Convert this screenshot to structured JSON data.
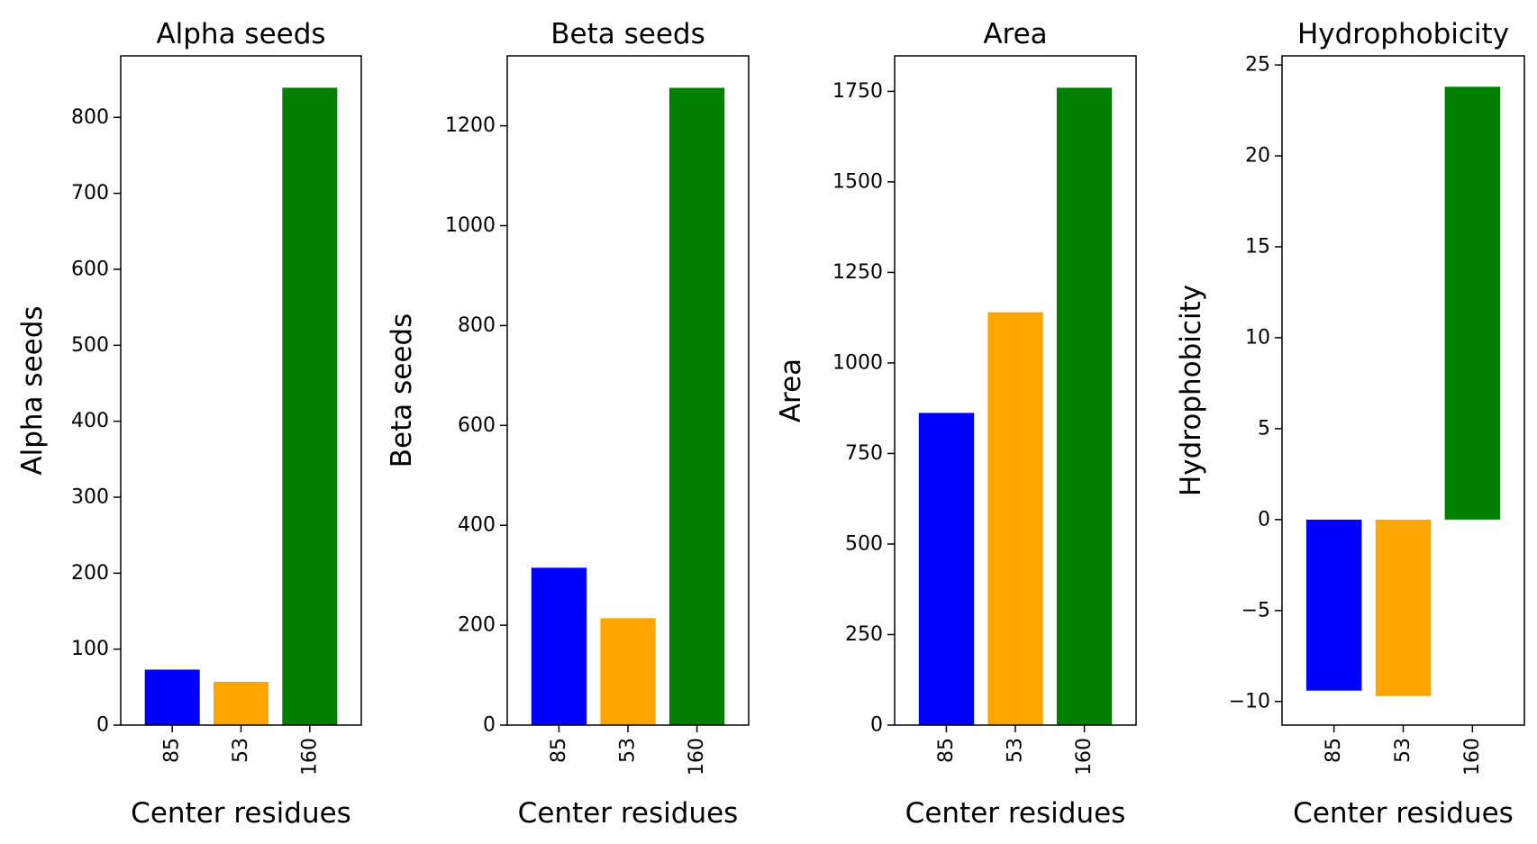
{
  "chart_data": [
    {
      "type": "bar",
      "title": "Alpha seeds",
      "xlabel": "Center residues",
      "ylabel": "Alpha seeds",
      "categories": [
        "85",
        "53",
        "160"
      ],
      "values": [
        73,
        57,
        839
      ],
      "colors": [
        "#0000ff",
        "#ffa500",
        "#008000"
      ],
      "ylim": [
        0,
        881
      ],
      "yticks": [
        0,
        100,
        200,
        300,
        400,
        500,
        600,
        700,
        800
      ],
      "ytick_labels": [
        "0",
        "100",
        "200",
        "300",
        "400",
        "500",
        "600",
        "700",
        "800"
      ],
      "grid": false
    },
    {
      "type": "bar",
      "title": "Beta seeds",
      "xlabel": "Center residues",
      "ylabel": "Beta seeds",
      "categories": [
        "85",
        "53",
        "160"
      ],
      "values": [
        315,
        214,
        1276
      ],
      "colors": [
        "#0000ff",
        "#ffa500",
        "#008000"
      ],
      "ylim": [
        0,
        1340
      ],
      "yticks": [
        0,
        200,
        400,
        600,
        800,
        1000,
        1200
      ],
      "ytick_labels": [
        "0",
        "200",
        "400",
        "600",
        "800",
        "1000",
        "1200"
      ],
      "grid": false
    },
    {
      "type": "bar",
      "title": "Area",
      "xlabel": "Center residues",
      "ylabel": "Area",
      "categories": [
        "85",
        "53",
        "160"
      ],
      "values": [
        862,
        1140,
        1760
      ],
      "colors": [
        "#0000ff",
        "#ffa500",
        "#008000"
      ],
      "ylim": [
        0,
        1848
      ],
      "yticks": [
        0,
        250,
        500,
        750,
        1000,
        1250,
        1500,
        1750
      ],
      "ytick_labels": [
        "0",
        "250",
        "500",
        "750",
        "1000",
        "1250",
        "1500",
        "1750"
      ],
      "grid": false
    },
    {
      "type": "bar",
      "title": "Hydrophobicity",
      "xlabel": "Center residues",
      "ylabel": "Hydrophobicity",
      "categories": [
        "85",
        "53",
        "160"
      ],
      "values": [
        -9.4,
        -9.7,
        23.8
      ],
      "colors": [
        "#0000ff",
        "#ffa500",
        "#008000"
      ],
      "ylim": [
        -11.3,
        25.5
      ],
      "yticks": [
        -10,
        -5,
        0,
        5,
        10,
        15,
        20,
        25
      ],
      "ytick_labels": [
        "−10",
        "−5",
        "0",
        "5",
        "10",
        "15",
        "20",
        "25"
      ],
      "grid": false
    }
  ]
}
